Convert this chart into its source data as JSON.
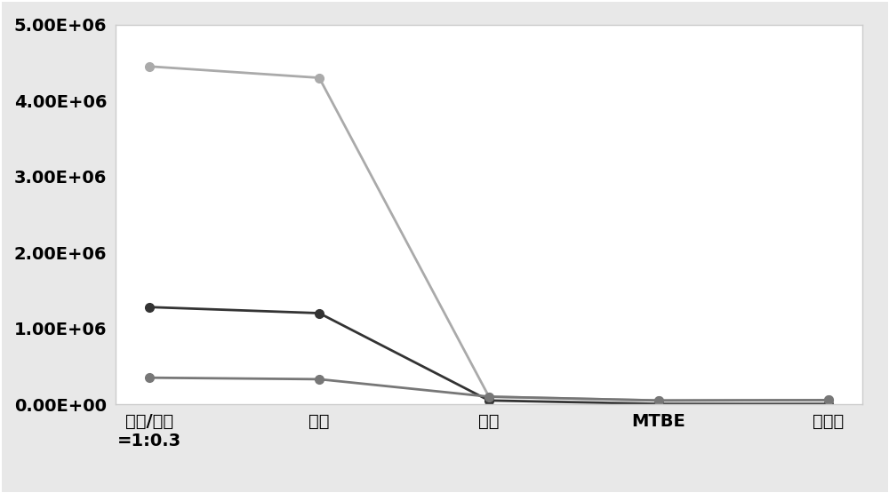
{
  "categories": [
    "甲醇/乙腼\n=1:0.3",
    "甲醇",
    "乙腼",
    "MTBE",
    "正己烷"
  ],
  "series": [
    {
      "values": [
        4450000,
        4300000,
        100000,
        50000,
        55000
      ],
      "color": "#aaaaaa",
      "linewidth": 2.0,
      "markersize": 7
    },
    {
      "values": [
        1280000,
        1200000,
        50000,
        5000,
        5000
      ],
      "color": "#333333",
      "linewidth": 2.0,
      "markersize": 7
    },
    {
      "values": [
        350000,
        330000,
        100000,
        50000,
        55000
      ],
      "color": "#777777",
      "linewidth": 2.0,
      "markersize": 7
    }
  ],
  "ylim": [
    0,
    5000000
  ],
  "yticks": [
    0,
    1000000,
    2000000,
    3000000,
    4000000,
    5000000
  ],
  "ytick_labels": [
    "0.00E+00",
    "1.00E+06",
    "2.00E+06",
    "3.00E+06",
    "4.00E+06",
    "5.00E+06"
  ],
  "background_color": "#e8e8e8",
  "plot_bg_color": "#ffffff",
  "border_color": "#cccccc",
  "tick_fontsize": 14,
  "label_fontsize": 14
}
